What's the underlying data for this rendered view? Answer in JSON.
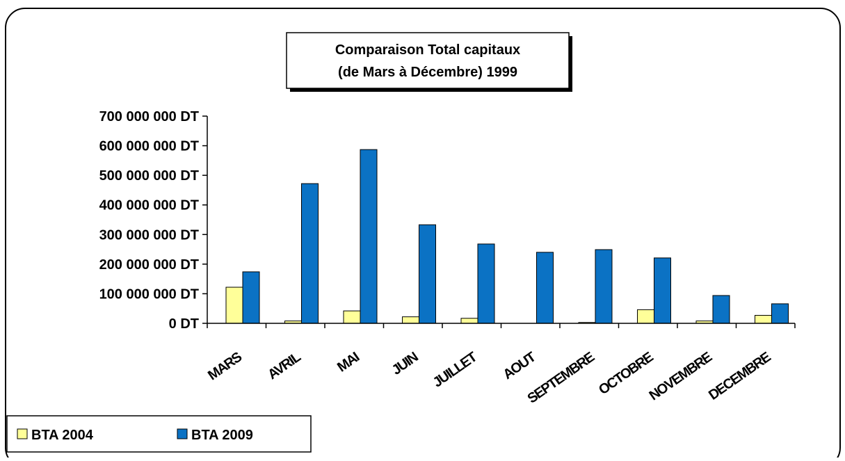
{
  "chart_data": {
    "type": "bar",
    "title": [
      "Comparaison Total capitaux",
      "(de Mars à Décembre) 1999"
    ],
    "categories": [
      "MARS",
      "AVRIL",
      "MAI",
      "JUIN",
      "JUILLET",
      "AOUT",
      "SEPTEMBRE",
      "OCTOBRE",
      "NOVEMBRE",
      "DECEMBRE"
    ],
    "series": [
      {
        "name": "BTA 2004",
        "color": "#ffff99",
        "values": [
          122000000,
          8000000,
          42000000,
          22000000,
          17000000,
          0,
          3000000,
          46000000,
          8000000,
          27000000
        ]
      },
      {
        "name": "BTA 2009",
        "color": "#0b72c4",
        "values": [
          174000000,
          472000000,
          587000000,
          333000000,
          268000000,
          240000000,
          249000000,
          221000000,
          94000000,
          66000000
        ]
      }
    ],
    "ylim": [
      0,
      700000000
    ],
    "yticks": [
      {
        "value": 0,
        "label": "0 DT"
      },
      {
        "value": 100000000,
        "label": "100 000 000 DT"
      },
      {
        "value": 200000000,
        "label": "200 000 000 DT"
      },
      {
        "value": 300000000,
        "label": "300 000 000 DT"
      },
      {
        "value": 400000000,
        "label": "400 000 000 DT"
      },
      {
        "value": 500000000,
        "label": "500 000 000 DT"
      },
      {
        "value": 600000000,
        "label": "600 000 000 DT"
      },
      {
        "value": 700000000,
        "label": "700 000 000 DT"
      }
    ],
    "legend": "bottom-left"
  }
}
